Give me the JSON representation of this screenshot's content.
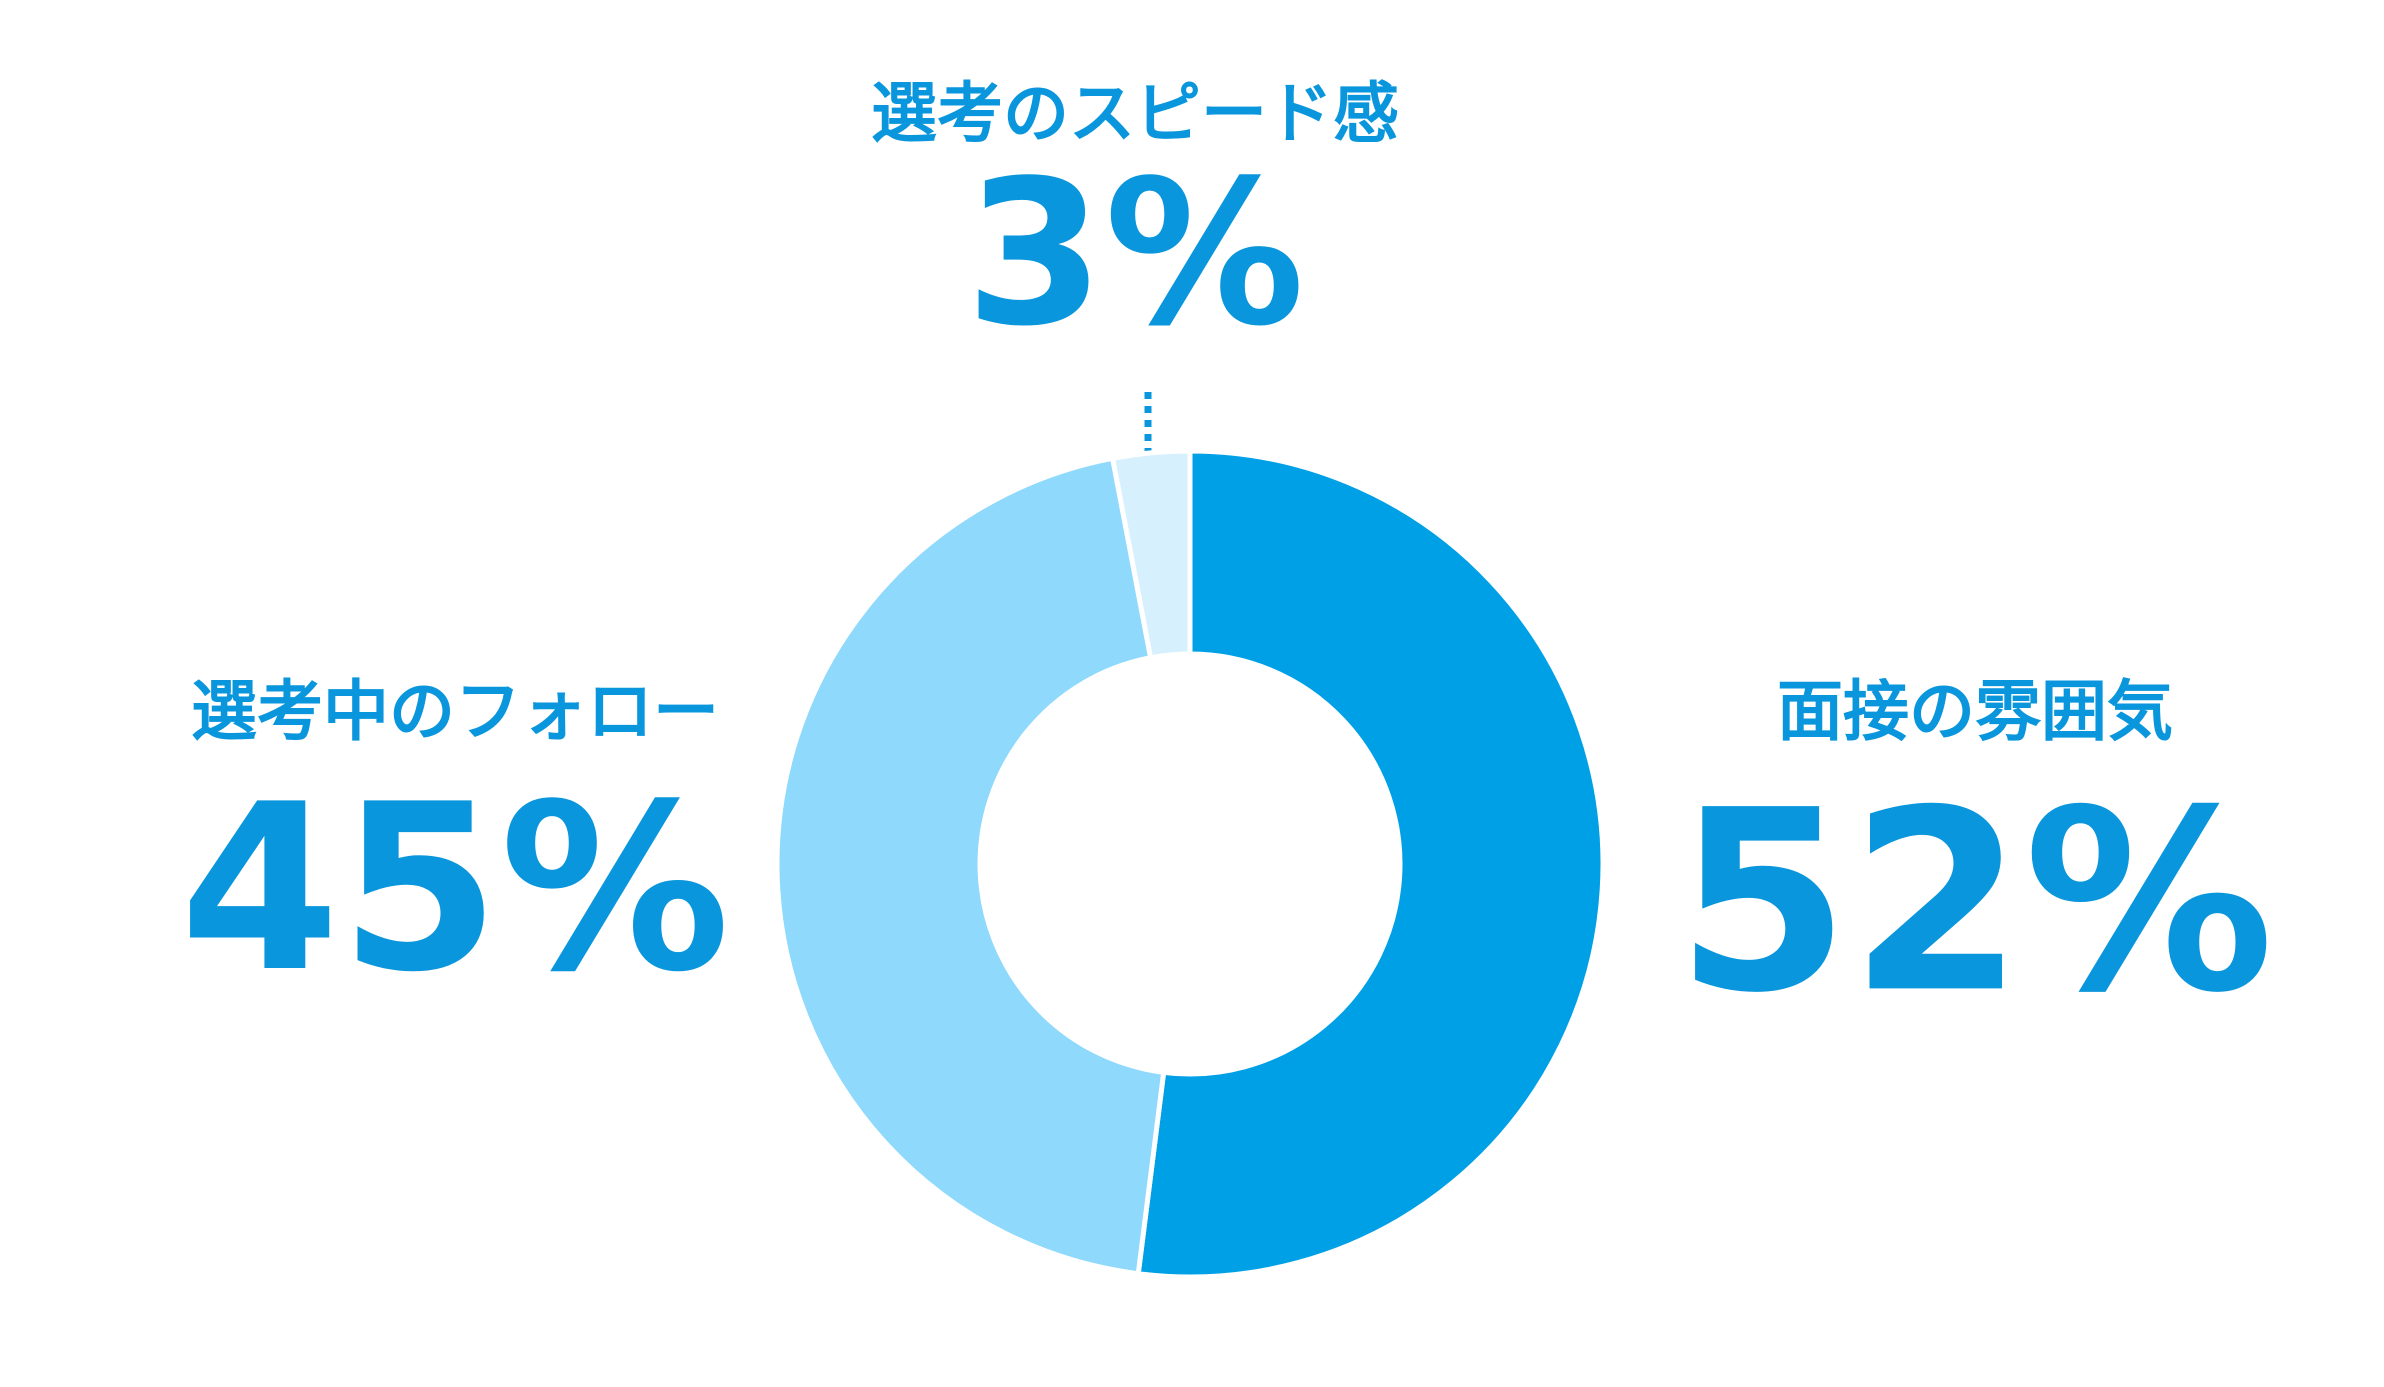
{
  "chart_data": {
    "type": "donut",
    "categories": [
      "面接の雰囲気",
      "選考中のフォロー",
      "選考のスピード感"
    ],
    "values": [
      52,
      45,
      3
    ],
    "value_labels": [
      "52%",
      "45%",
      "3%"
    ],
    "colors": [
      "#00a0e6",
      "#8ed9fc",
      "#d6f1fd"
    ]
  }
}
